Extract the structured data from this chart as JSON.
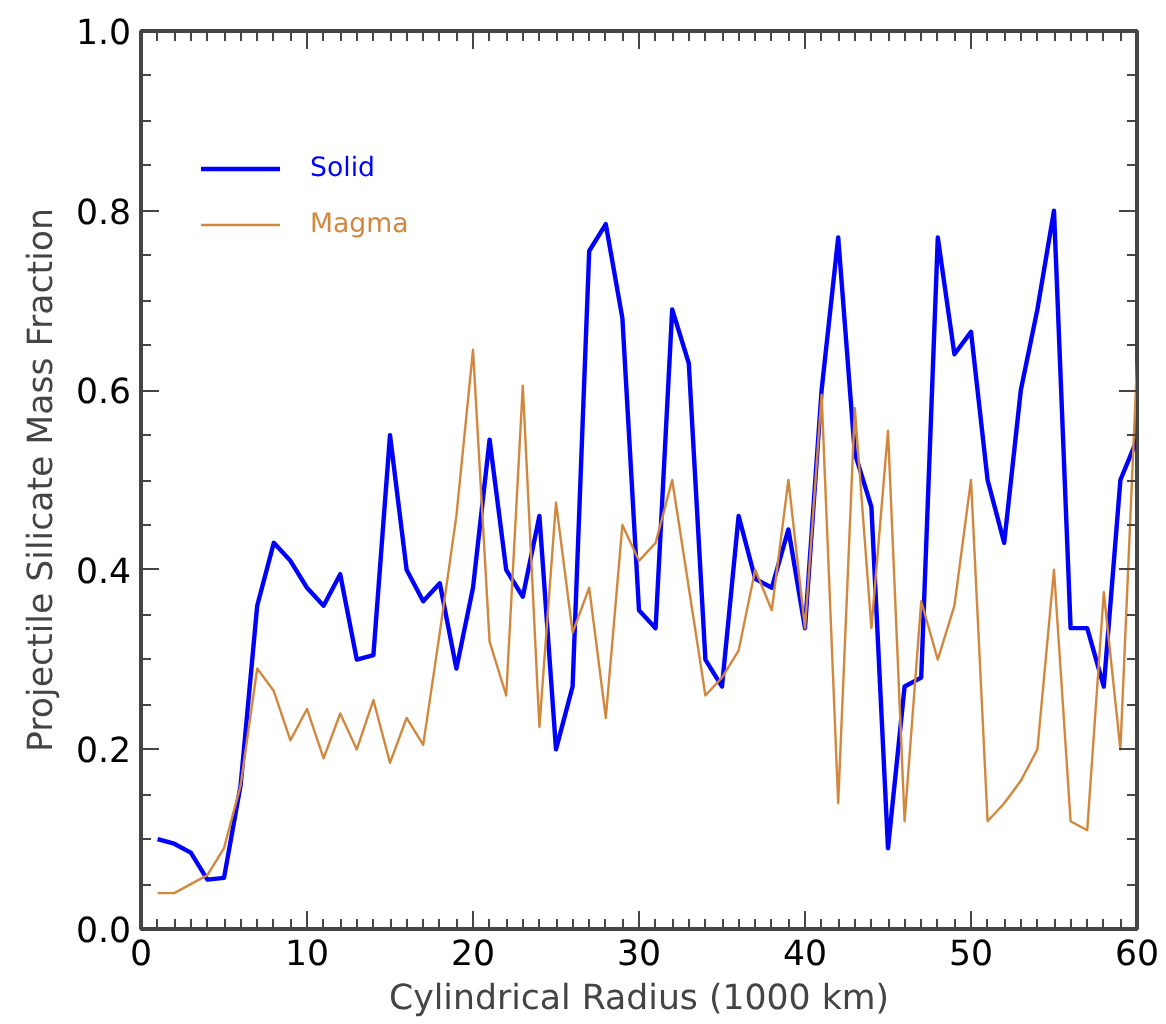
{
  "chart_data": {
    "type": "line",
    "xlabel": "Cylindrical Radius (1000 km)",
    "ylabel": "Projectile Silicate Mass Fraction",
    "x": [
      1,
      2,
      3,
      4,
      5,
      6,
      7,
      8,
      9,
      10,
      11,
      12,
      13,
      14,
      15,
      16,
      17,
      18,
      19,
      20,
      21,
      22,
      23,
      24,
      25,
      26,
      27,
      28,
      29,
      30,
      31,
      32,
      33,
      34,
      35,
      36,
      37,
      38,
      39,
      40,
      41,
      42,
      43,
      44,
      45,
      46,
      47,
      48,
      49,
      50,
      51,
      52,
      53,
      54,
      55,
      56,
      57,
      58,
      59,
      60
    ],
    "series": [
      {
        "name": "Solid",
        "color": "#0000ff",
        "values": [
          0.1,
          0.095,
          0.085,
          0.055,
          0.057,
          0.16,
          0.36,
          0.43,
          0.41,
          0.38,
          0.36,
          0.395,
          0.3,
          0.305,
          0.55,
          0.4,
          0.365,
          0.385,
          0.29,
          0.38,
          0.545,
          0.4,
          0.37,
          0.46,
          0.2,
          0.27,
          0.755,
          0.785,
          0.68,
          0.355,
          0.335,
          0.69,
          0.63,
          0.3,
          0.27,
          0.46,
          0.39,
          0.38,
          0.445,
          0.335,
          0.6,
          0.77,
          0.53,
          0.47,
          0.09,
          0.27,
          0.28,
          0.77,
          0.64,
          0.665,
          0.5,
          0.43,
          0.6,
          0.69,
          0.8,
          0.335,
          0.335,
          0.27,
          0.5,
          0.545
        ]
      },
      {
        "name": "Magma",
        "color": "#d2873f",
        "values": [
          0.04,
          0.04,
          0.05,
          0.06,
          0.09,
          0.16,
          0.29,
          0.265,
          0.21,
          0.245,
          0.19,
          0.24,
          0.2,
          0.255,
          0.185,
          0.235,
          0.205,
          0.33,
          0.46,
          0.645,
          0.32,
          0.26,
          0.605,
          0.225,
          0.475,
          0.33,
          0.38,
          0.235,
          0.45,
          0.41,
          0.43,
          0.5,
          0.38,
          0.26,
          0.28,
          0.31,
          0.4,
          0.355,
          0.5,
          0.335,
          0.595,
          0.14,
          0.58,
          0.335,
          0.555,
          0.12,
          0.365,
          0.3,
          0.36,
          0.5,
          0.12,
          0.14,
          0.165,
          0.2,
          0.4,
          0.12,
          0.11,
          0.375,
          0.2,
          0.63
        ]
      }
    ],
    "xlim": [
      0,
      60
    ],
    "ylim": [
      0,
      1
    ],
    "xticks": [
      0,
      10,
      20,
      30,
      40,
      50,
      60
    ],
    "yticks": [
      {
        "value": 0,
        "label": "0.0"
      },
      {
        "value": 0.2,
        "label": "0.2"
      },
      {
        "value": 0.4,
        "label": "0.4"
      },
      {
        "value": 0.6,
        "label": "0.6"
      },
      {
        "value": 0.8,
        "label": "0.8"
      },
      {
        "value": 1,
        "label": "1.0"
      }
    ],
    "grid": false,
    "legend": "top left"
  }
}
